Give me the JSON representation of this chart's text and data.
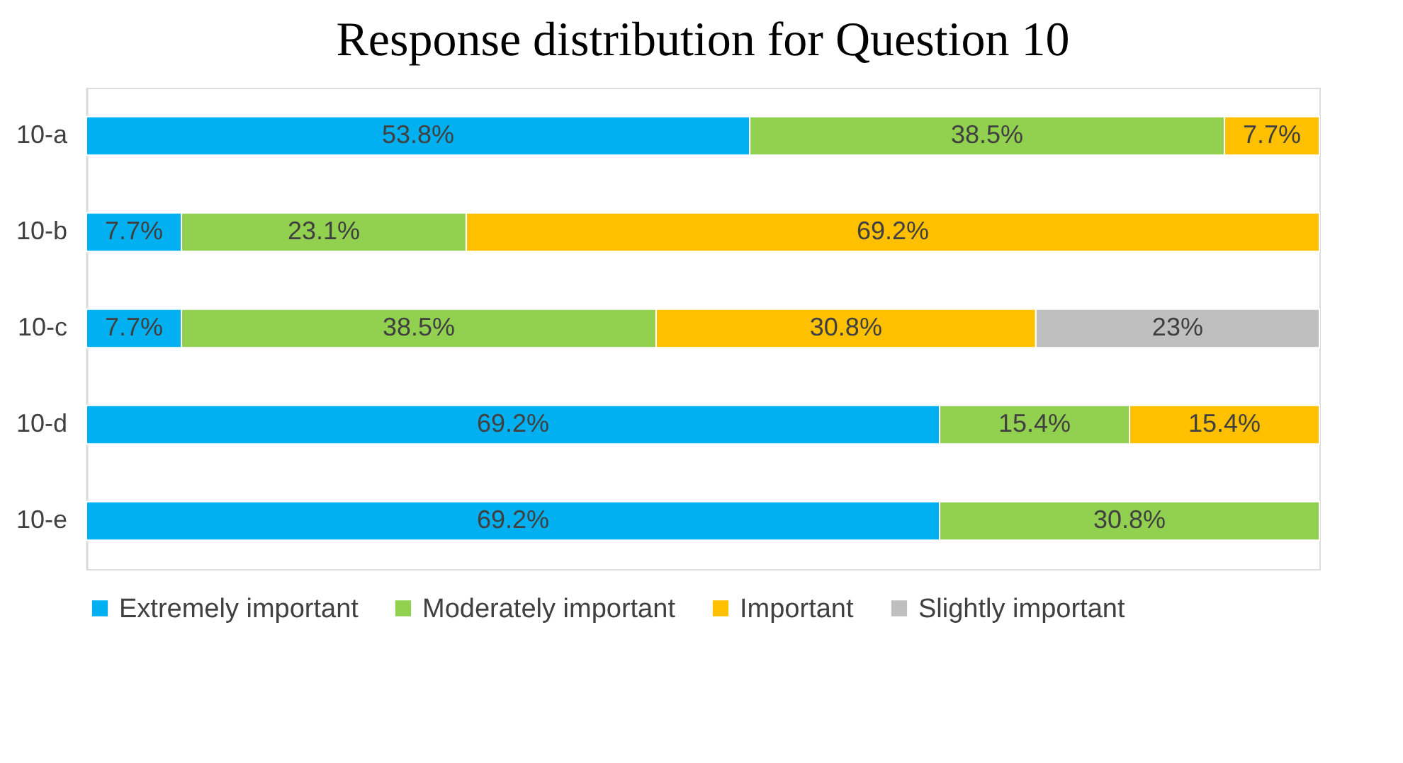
{
  "chart_data": {
    "type": "bar",
    "title": "Response distribution for Question 10",
    "orientation": "horizontal",
    "stacked": true,
    "grid": false,
    "legend": "bottom",
    "tick_labels": "y",
    "categories": [
      "10-a",
      "10-b",
      "10-c",
      "10-d",
      "10-e"
    ],
    "series": [
      {
        "name": "Extremely important",
        "color": "#00b0f0",
        "values": [
          53.8,
          7.7,
          7.7,
          69.2,
          69.2
        ],
        "value_labels": [
          "53.8%",
          "7.7%",
          "7.7%",
          "69.2%",
          "69.2%"
        ]
      },
      {
        "name": "Moderately important",
        "color": "#92d050",
        "values": [
          38.5,
          23.1,
          38.5,
          15.4,
          30.8
        ],
        "value_labels": [
          "38.5%",
          "23.1%",
          "38.5%",
          "15.4%",
          "30.8%"
        ]
      },
      {
        "name": "Important",
        "color": "#ffc000",
        "values": [
          7.7,
          69.2,
          30.8,
          15.4,
          null
        ],
        "value_labels": [
          "7.7%",
          "69.2%",
          "30.8%",
          "15.4%",
          null
        ]
      },
      {
        "name": "Slightly important",
        "color": "#bfbfbf",
        "values": [
          null,
          null,
          23,
          null,
          null
        ],
        "value_labels": [
          null,
          null,
          "23%",
          null,
          null
        ]
      }
    ]
  }
}
